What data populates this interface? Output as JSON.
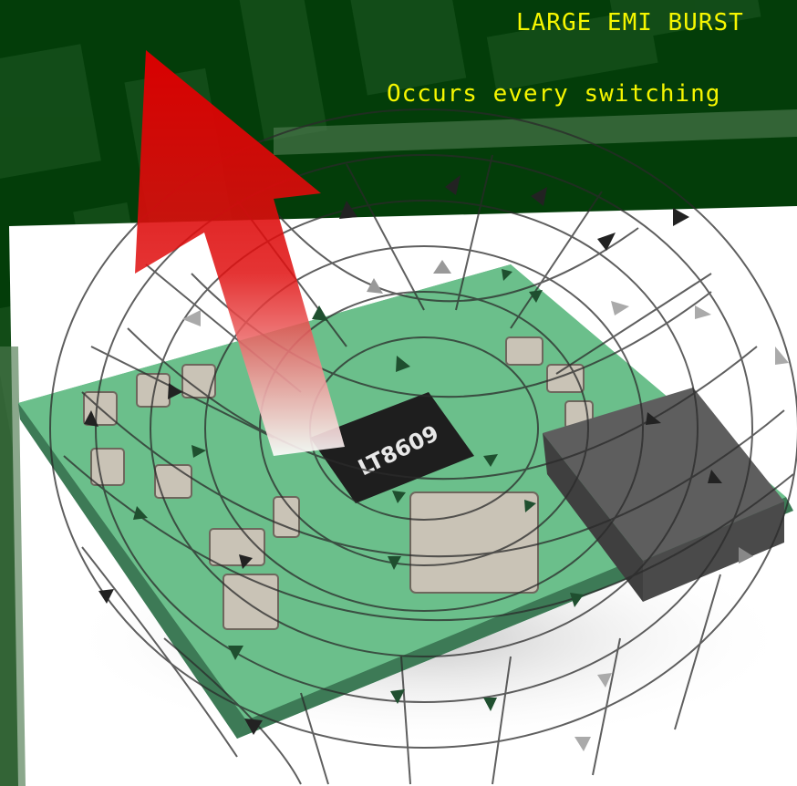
{
  "captions": {
    "line1": "LARGE EMI BURST",
    "line2": "Occurs every switching"
  },
  "chip_marking": "LT8609",
  "colors": {
    "background": "#033d09",
    "caption_text": "#f6f600",
    "pcb_green": "#5fb685",
    "arrow_red": "#d80000",
    "field_lines": "#2a2a2a"
  },
  "icons": {
    "emi_arrow": "red-up-arrow-icon",
    "field_mesh": "magnetic-field-mesh-icon",
    "field_direction": "direction-arrowhead-icon"
  }
}
